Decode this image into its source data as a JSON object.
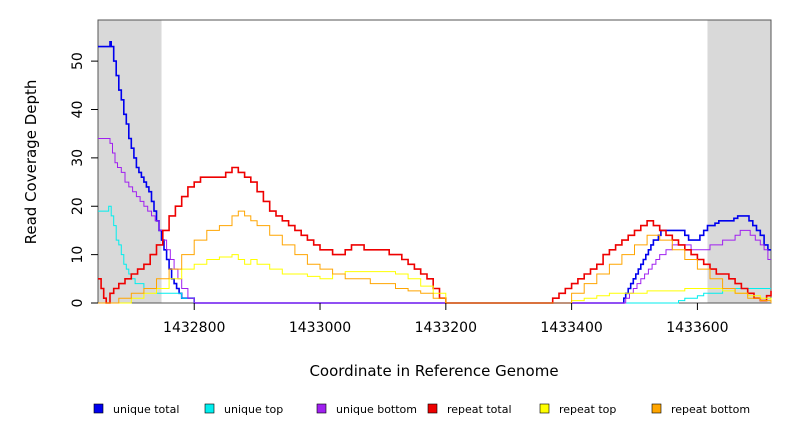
{
  "chart_data": {
    "type": "line",
    "title": "",
    "xlabel": "Coordinate in Reference Genome",
    "ylabel": "Read Coverage Depth",
    "xlim": [
      1432647,
      1433717
    ],
    "ylim": [
      0,
      58.5
    ],
    "x_ticks": [
      1432800,
      1433000,
      1433200,
      1433400,
      1433600
    ],
    "x_tick_labels": [
      "1432800",
      "1433000",
      "1433200",
      "1433400",
      "1433600"
    ],
    "y_ticks": [
      0,
      10,
      20,
      30,
      40,
      50
    ],
    "y_tick_labels": [
      "0",
      "10",
      "20",
      "30",
      "40",
      "50"
    ],
    "shaded_regions": [
      {
        "x0": 1432647,
        "x1": 1432748,
        "color": "#d9d9d9"
      },
      {
        "x0": 1433616,
        "x1": 1433717,
        "color": "#d9d9d9"
      }
    ],
    "grid": false,
    "legend_position": "bottom",
    "series": [
      {
        "name": "unique total",
        "color": "#0000ee",
        "x": [
          1432647,
          1432660,
          1432666,
          1432668,
          1432672,
          1432676,
          1432680,
          1432684,
          1432688,
          1432692,
          1432696,
          1432700,
          1432704,
          1432708,
          1432712,
          1432716,
          1432720,
          1432724,
          1432728,
          1432732,
          1432736,
          1432740,
          1432744,
          1432748,
          1432752,
          1432756,
          1432760,
          1432764,
          1432768,
          1432772,
          1432776,
          1432780,
          1432790,
          1432800,
          1432805,
          1433200,
          1433400,
          1433480,
          1433483,
          1433486,
          1433490,
          1433494,
          1433498,
          1433502,
          1433506,
          1433510,
          1433514,
          1433518,
          1433522,
          1433526,
          1433530,
          1433534,
          1433538,
          1433542,
          1433546,
          1433550,
          1433556,
          1433562,
          1433568,
          1433574,
          1433580,
          1433586,
          1433592,
          1433598,
          1433604,
          1433610,
          1433616,
          1433622,
          1433628,
          1433634,
          1433640,
          1433646,
          1433652,
          1433658,
          1433664,
          1433670,
          1433676,
          1433682,
          1433688,
          1433694,
          1433700,
          1433706,
          1433712,
          1433717
        ],
        "y": [
          53,
          53,
          54,
          53,
          50,
          47,
          44,
          42,
          39,
          37,
          34,
          32,
          30,
          28,
          27,
          26,
          25,
          24,
          23,
          21,
          19,
          17,
          15,
          13,
          11,
          9,
          7,
          5,
          4,
          3,
          2,
          1,
          1,
          0,
          0,
          0,
          0,
          0,
          1,
          2,
          3,
          4,
          5,
          6,
          7,
          8,
          9,
          10,
          11,
          12,
          13,
          13,
          14,
          15,
          15,
          15,
          15,
          15,
          15,
          15,
          14,
          13,
          13,
          13,
          14,
          15,
          16,
          16,
          16.5,
          17,
          17,
          17,
          17,
          17.5,
          18,
          18,
          18,
          17,
          16,
          15,
          14,
          12,
          11,
          11
        ]
      },
      {
        "name": "unique top",
        "color": "#00eeee",
        "x": [
          1432647,
          1432660,
          1432664,
          1432668,
          1432672,
          1432676,
          1432680,
          1432684,
          1432688,
          1432692,
          1432696,
          1432700,
          1432706,
          1432712,
          1432720,
          1432730,
          1432740,
          1432750,
          1432760,
          1432780,
          1432800,
          1432810,
          1433200,
          1433560,
          1433570,
          1433580,
          1433590,
          1433600,
          1433610,
          1433620,
          1433640,
          1433660,
          1433680,
          1433700,
          1433717
        ],
        "y": [
          19,
          19,
          20,
          18,
          16,
          13,
          12,
          10,
          8,
          7,
          6,
          5,
          4,
          4,
          3,
          3,
          2,
          2,
          2,
          1,
          0,
          0,
          0,
          0,
          0.5,
          1,
          1,
          1.5,
          2,
          2,
          3,
          3,
          3,
          3,
          3
        ]
      },
      {
        "name": "unique bottom",
        "color": "#a020f0",
        "x": [
          1432647,
          1432660,
          1432666,
          1432670,
          1432674,
          1432678,
          1432684,
          1432690,
          1432696,
          1432702,
          1432708,
          1432714,
          1432720,
          1432726,
          1432732,
          1432738,
          1432744,
          1432750,
          1432756,
          1432762,
          1432768,
          1432774,
          1432780,
          1432790,
          1432800,
          1433200,
          1433480,
          1433486,
          1433492,
          1433498,
          1433504,
          1433510,
          1433516,
          1433522,
          1433528,
          1433534,
          1433540,
          1433550,
          1433560,
          1433570,
          1433580,
          1433590,
          1433600,
          1433610,
          1433620,
          1433630,
          1433640,
          1433650,
          1433660,
          1433668,
          1433676,
          1433684,
          1433692,
          1433700,
          1433706,
          1433712,
          1433717
        ],
        "y": [
          34,
          34,
          33,
          31,
          29,
          28,
          27,
          25,
          24,
          23,
          22,
          21,
          20,
          19,
          18,
          17,
          15,
          13,
          11,
          9,
          7,
          5,
          3,
          1,
          0,
          0,
          0,
          1,
          2,
          3,
          4,
          5,
          6,
          7,
          8,
          9,
          10,
          11,
          12,
          12,
          12,
          11,
          11,
          11,
          12,
          12,
          13,
          13,
          14,
          15,
          15,
          14,
          13,
          12,
          11,
          9,
          9
        ]
      },
      {
        "name": "repeat total",
        "color": "#ee0000",
        "x": [
          1432647,
          1432652,
          1432656,
          1432660,
          1432666,
          1432672,
          1432680,
          1432690,
          1432700,
          1432710,
          1432720,
          1432730,
          1432740,
          1432750,
          1432760,
          1432770,
          1432780,
          1432790,
          1432800,
          1432810,
          1432820,
          1432830,
          1432840,
          1432850,
          1432860,
          1432870,
          1432880,
          1432890,
          1432900,
          1432910,
          1432920,
          1432930,
          1432940,
          1432950,
          1432960,
          1432970,
          1432980,
          1432990,
          1433000,
          1433010,
          1433020,
          1433030,
          1433040,
          1433050,
          1433060,
          1433070,
          1433080,
          1433090,
          1433100,
          1433110,
          1433120,
          1433130,
          1433140,
          1433150,
          1433160,
          1433170,
          1433180,
          1433190,
          1433200,
          1433360,
          1433370,
          1433380,
          1433390,
          1433400,
          1433410,
          1433420,
          1433430,
          1433440,
          1433450,
          1433460,
          1433470,
          1433480,
          1433490,
          1433500,
          1433510,
          1433520,
          1433530,
          1433540,
          1433550,
          1433560,
          1433570,
          1433580,
          1433590,
          1433600,
          1433610,
          1433620,
          1433630,
          1433640,
          1433650,
          1433660,
          1433670,
          1433680,
          1433690,
          1433700,
          1433710,
          1433717
        ],
        "y": [
          5,
          3,
          1,
          0,
          2,
          3,
          4,
          5,
          6,
          7,
          8,
          10,
          12,
          15,
          18,
          20,
          22,
          24,
          25,
          26,
          26,
          26,
          26,
          27,
          28,
          27,
          26,
          25,
          23,
          21,
          19,
          18,
          17,
          16,
          15,
          14,
          13,
          12,
          11,
          11,
          10,
          10,
          11,
          12,
          12,
          11,
          11,
          11,
          11,
          10,
          10,
          9,
          8,
          7,
          6,
          5,
          3,
          1,
          0,
          0,
          1,
          2,
          3,
          4,
          5,
          6,
          7,
          8,
          10,
          11,
          12,
          13,
          14,
          15,
          16,
          17,
          16,
          15,
          14,
          13,
          12,
          11,
          10,
          9,
          8,
          7,
          6,
          6,
          5,
          4,
          3,
          2,
          1,
          0.5,
          1.5,
          2.5
        ]
      },
      {
        "name": "repeat top",
        "color": "#ffff00",
        "x": [
          1432647,
          1432660,
          1432680,
          1432700,
          1432720,
          1432740,
          1432760,
          1432780,
          1432800,
          1432820,
          1432840,
          1432860,
          1432870,
          1432880,
          1432890,
          1432900,
          1432920,
          1432940,
          1432960,
          1432980,
          1433000,
          1433020,
          1433040,
          1433060,
          1433080,
          1433100,
          1433120,
          1433140,
          1433160,
          1433180,
          1433200,
          1433380,
          1433400,
          1433420,
          1433440,
          1433460,
          1433480,
          1433500,
          1433520,
          1433540,
          1433560,
          1433580,
          1433600,
          1433620,
          1433640,
          1433660,
          1433680,
          1433700,
          1433717
        ],
        "y": [
          0,
          0,
          0,
          1,
          2,
          3,
          5,
          7,
          8,
          9,
          9.5,
          10,
          9,
          8,
          9,
          8,
          7,
          6,
          6,
          5.5,
          5,
          6,
          6.5,
          6.5,
          6.5,
          6.5,
          6,
          5,
          3.5,
          2,
          0,
          0,
          0.5,
          1,
          1.5,
          2,
          2,
          2,
          2.5,
          2.5,
          2.5,
          3,
          3,
          3,
          2.5,
          2,
          1.5,
          1,
          0.5
        ]
      },
      {
        "name": "repeat bottom",
        "color": "#ffa500",
        "x": [
          1432647,
          1432660,
          1432680,
          1432700,
          1432720,
          1432740,
          1432760,
          1432780,
          1432800,
          1432820,
          1432840,
          1432860,
          1432870,
          1432880,
          1432890,
          1432900,
          1432920,
          1432940,
          1432960,
          1432980,
          1433000,
          1433020,
          1433040,
          1433060,
          1433080,
          1433100,
          1433120,
          1433140,
          1433160,
          1433180,
          1433200,
          1433380,
          1433400,
          1433420,
          1433440,
          1433460,
          1433480,
          1433500,
          1433520,
          1433540,
          1433560,
          1433580,
          1433600,
          1433620,
          1433640,
          1433660,
          1433680,
          1433700,
          1433717
        ],
        "y": [
          0,
          0,
          1,
          2,
          3,
          5,
          7,
          10,
          13,
          15,
          16,
          18,
          19,
          18,
          17,
          16,
          14,
          12,
          10,
          8,
          7,
          6,
          5,
          5,
          4,
          4,
          3,
          2.5,
          2,
          1,
          0,
          0,
          2,
          4,
          6,
          8,
          10,
          12,
          14,
          13,
          11,
          9,
          7,
          5,
          3,
          2,
          1,
          0.5,
          0
        ]
      }
    ]
  }
}
